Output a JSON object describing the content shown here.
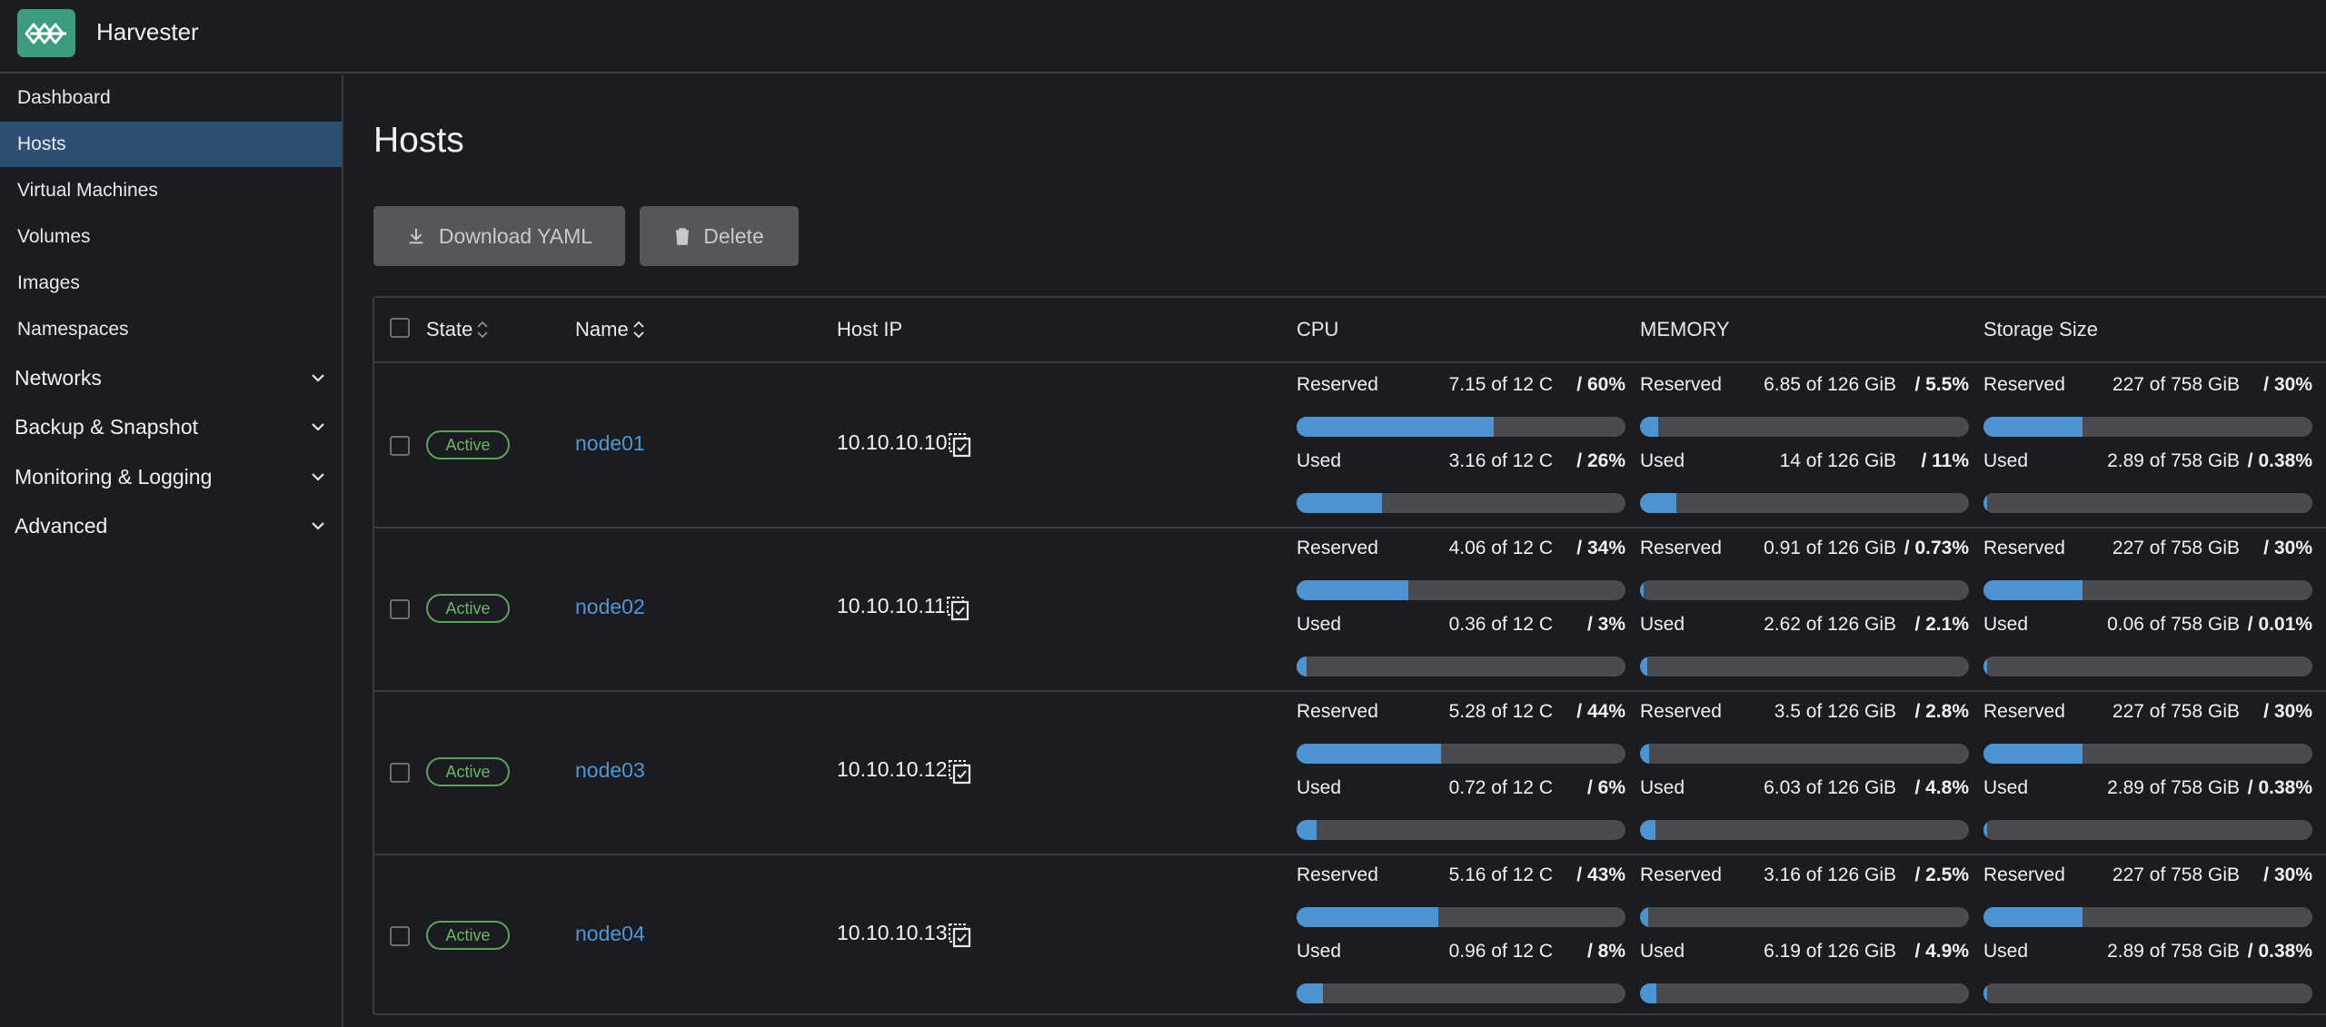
{
  "app": {
    "title": "Harvester"
  },
  "sidebar": {
    "items": [
      {
        "label": "Dashboard",
        "active": false
      },
      {
        "label": "Hosts",
        "active": true
      },
      {
        "label": "Virtual Machines",
        "active": false
      },
      {
        "label": "Volumes",
        "active": false
      },
      {
        "label": "Images",
        "active": false
      },
      {
        "label": "Namespaces",
        "active": false
      }
    ],
    "groups": [
      {
        "label": "Networks"
      },
      {
        "label": "Backup & Snapshot"
      },
      {
        "label": "Monitoring & Logging"
      },
      {
        "label": "Advanced"
      }
    ]
  },
  "page": {
    "title": "Hosts"
  },
  "toolbar": {
    "download_label": "Download YAML",
    "delete_label": "Delete"
  },
  "table": {
    "headers": {
      "state": "State",
      "name": "Name",
      "host_ip": "Host IP",
      "cpu": "CPU",
      "memory": "MEMORY",
      "storage": "Storage Size"
    },
    "reserved_label": "Reserved",
    "used_label": "Used",
    "rows": [
      {
        "state": "Active",
        "name": "node01",
        "ip": "10.10.10.10",
        "cpu": {
          "reserved": {
            "value": "7.15 of 12 C",
            "pct": "/ 60%",
            "fraction": 0.6
          },
          "used": {
            "value": "3.16 of 12 C",
            "pct": "/ 26%",
            "fraction": 0.26
          }
        },
        "memory": {
          "reserved": {
            "value": "6.85 of 126 GiB",
            "pct": "/ 5.5%",
            "fraction": 0.055
          },
          "used": {
            "value": "14 of 126 GiB",
            "pct": "/ 11%",
            "fraction": 0.11
          }
        },
        "storage": {
          "reserved": {
            "value": "227 of 758 GiB",
            "pct": "/ 30%",
            "fraction": 0.3
          },
          "used": {
            "value": "2.89 of 758 GiB",
            "pct": "/ 0.38%",
            "fraction": 0.0038
          }
        }
      },
      {
        "state": "Active",
        "name": "node02",
        "ip": "10.10.10.11",
        "cpu": {
          "reserved": {
            "value": "4.06 of 12 C",
            "pct": "/ 34%",
            "fraction": 0.34
          },
          "used": {
            "value": "0.36 of 12 C",
            "pct": "/ 3%",
            "fraction": 0.03
          }
        },
        "memory": {
          "reserved": {
            "value": "0.91 of 126 GiB",
            "pct": "/ 0.73%",
            "fraction": 0.0073
          },
          "used": {
            "value": "2.62 of 126 GiB",
            "pct": "/ 2.1%",
            "fraction": 0.021
          }
        },
        "storage": {
          "reserved": {
            "value": "227 of 758 GiB",
            "pct": "/ 30%",
            "fraction": 0.3
          },
          "used": {
            "value": "0.06 of 758 GiB",
            "pct": "/ 0.01%",
            "fraction": 0.0001
          }
        }
      },
      {
        "state": "Active",
        "name": "node03",
        "ip": "10.10.10.12",
        "cpu": {
          "reserved": {
            "value": "5.28 of 12 C",
            "pct": "/ 44%",
            "fraction": 0.44
          },
          "used": {
            "value": "0.72 of 12 C",
            "pct": "/ 6%",
            "fraction": 0.06
          }
        },
        "memory": {
          "reserved": {
            "value": "3.5 of 126 GiB",
            "pct": "/ 2.8%",
            "fraction": 0.028
          },
          "used": {
            "value": "6.03 of 126 GiB",
            "pct": "/ 4.8%",
            "fraction": 0.048
          }
        },
        "storage": {
          "reserved": {
            "value": "227 of 758 GiB",
            "pct": "/ 30%",
            "fraction": 0.3
          },
          "used": {
            "value": "2.89 of 758 GiB",
            "pct": "/ 0.38%",
            "fraction": 0.0038
          }
        }
      },
      {
        "state": "Active",
        "name": "node04",
        "ip": "10.10.10.13",
        "cpu": {
          "reserved": {
            "value": "5.16 of 12 C",
            "pct": "/ 43%",
            "fraction": 0.43
          },
          "used": {
            "value": "0.96 of 12 C",
            "pct": "/ 8%",
            "fraction": 0.08
          }
        },
        "memory": {
          "reserved": {
            "value": "3.16 of 126 GiB",
            "pct": "/ 2.5%",
            "fraction": 0.025
          },
          "used": {
            "value": "6.19 of 126 GiB",
            "pct": "/ 4.9%",
            "fraction": 0.049
          }
        },
        "storage": {
          "reserved": {
            "value": "227 of 758 GiB",
            "pct": "/ 30%",
            "fraction": 0.3
          },
          "used": {
            "value": "2.89 of 758 GiB",
            "pct": "/ 0.38%",
            "fraction": 0.0038
          }
        }
      }
    ]
  },
  "colors": {
    "accent": "#4d93d1",
    "active_nav": "#2d4f73",
    "state_active": "#6cb665",
    "logo": "#3d9c7f"
  }
}
